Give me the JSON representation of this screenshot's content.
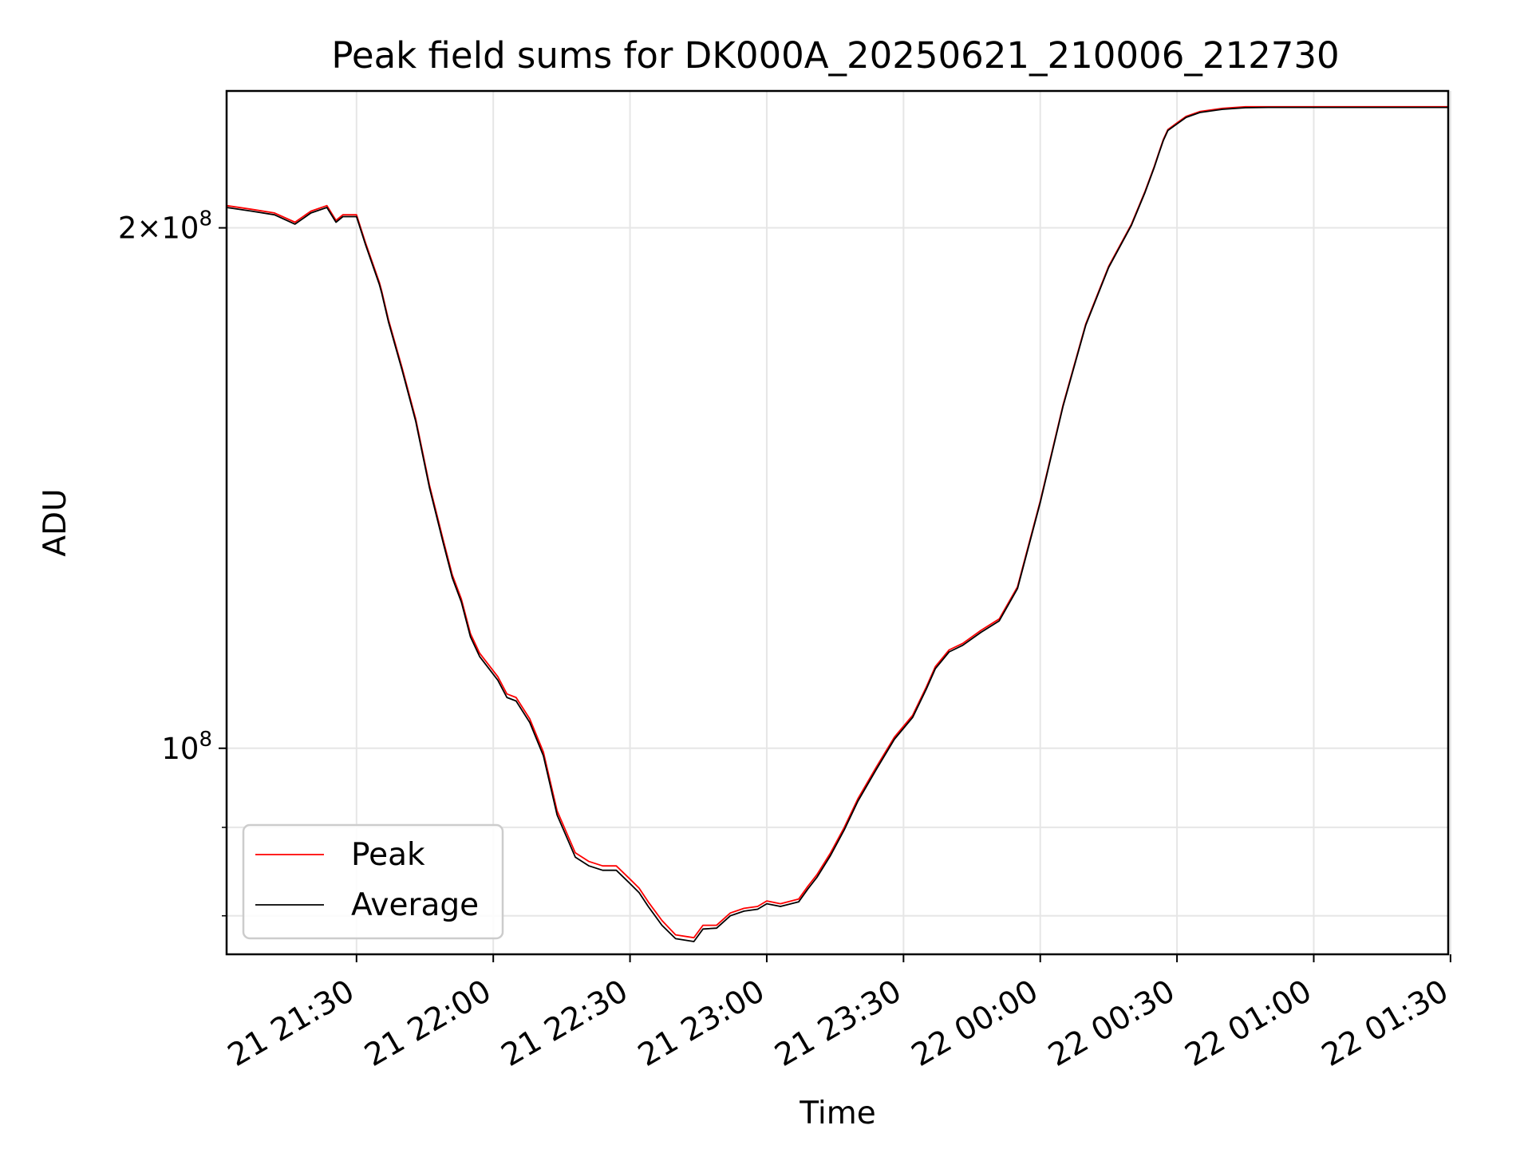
{
  "chart_data": {
    "type": "line",
    "title": "Peak field sums for DK000A_20250621_210006_212730",
    "xlabel": "Time",
    "ylabel": "ADU",
    "x_ticks": [
      "21 21:30",
      "21 22:00",
      "21 22:30",
      "21 23:00",
      "21 23:30",
      "22 00:00",
      "22 00:30",
      "22 01:00",
      "22 01:30"
    ],
    "y_major_ticks": [
      {
        "value": 200000000,
        "mantissa": "2",
        "exponent": "8",
        "label": "2×10^8"
      },
      {
        "value": 100000000,
        "mantissa": "",
        "exponent": "8",
        "label": "10^8"
      }
    ],
    "y_minor_ticks": [
      80000000,
      90000000
    ],
    "xlim": [
      "2025-06-21 21:01:30",
      "2025-06-22 01:29:30"
    ],
    "ylim": [
      76000000,
      240000000
    ],
    "yscale": "log",
    "grid": true,
    "legend_position": "lower-left",
    "series": [
      {
        "name": "Peak",
        "color": "#ff0000",
        "x": [
          "2025-06-21 21:01:30",
          "2025-06-21 21:07:00",
          "2025-06-21 21:12:00",
          "2025-06-21 21:16:30",
          "2025-06-21 21:20:00",
          "2025-06-21 21:23:30",
          "2025-06-21 21:25:30",
          "2025-06-21 21:27:00",
          "2025-06-21 21:30:00",
          "2025-06-21 21:32:00",
          "2025-06-21 21:35:00",
          "2025-06-21 21:35:30",
          "2025-06-21 21:37:00",
          "2025-06-21 21:40:00",
          "2025-06-21 21:43:00",
          "2025-06-21 21:46:00",
          "2025-06-21 21:49:00",
          "2025-06-21 21:51:00",
          "2025-06-21 21:53:00",
          "2025-06-21 21:55:00",
          "2025-06-21 21:57:00",
          "2025-06-21 22:01:00",
          "2025-06-21 22:03:00",
          "2025-06-21 22:05:00",
          "2025-06-21 22:08:00",
          "2025-06-21 22:11:00",
          "2025-06-21 22:14:00",
          "2025-06-21 22:18:00",
          "2025-06-21 22:21:00",
          "2025-06-21 22:24:00",
          "2025-06-21 22:27:00",
          "2025-06-21 22:30:00",
          "2025-06-21 22:32:00",
          "2025-06-21 22:34:00",
          "2025-06-21 22:37:00",
          "2025-06-21 22:40:00",
          "2025-06-21 22:44:00",
          "2025-06-21 22:46:00",
          "2025-06-21 22:49:00",
          "2025-06-21 22:52:00",
          "2025-06-21 22:55:00",
          "2025-06-21 22:58:00",
          "2025-06-21 23:00:00",
          "2025-06-21 23:03:00",
          "2025-06-21 23:07:00",
          "2025-06-21 23:09:00",
          "2025-06-21 23:11:00",
          "2025-06-21 23:14:00",
          "2025-06-21 23:17:00",
          "2025-06-21 23:20:00",
          "2025-06-21 23:24:00",
          "2025-06-21 23:28:00",
          "2025-06-21 23:32:00",
          "2025-06-21 23:35:00",
          "2025-06-21 23:37:00",
          "2025-06-21 23:40:00",
          "2025-06-21 23:43:00",
          "2025-06-21 23:47:00",
          "2025-06-21 23:51:00",
          "2025-06-21 23:55:00",
          "2025-06-22 00:00:00",
          "2025-06-22 00:05:00",
          "2025-06-22 00:10:00",
          "2025-06-22 00:15:00",
          "2025-06-22 00:20:00",
          "2025-06-22 00:23:00",
          "2025-06-22 00:25:00",
          "2025-06-22 00:26:00",
          "2025-06-22 00:27:00",
          "2025-06-22 00:28:00",
          "2025-06-22 00:30:00",
          "2025-06-22 00:32:00",
          "2025-06-22 00:35:00",
          "2025-06-22 00:40:00",
          "2025-06-22 00:45:00",
          "2025-06-22 00:50:00",
          "2025-06-22 00:54:00",
          "2025-06-22 00:57:00",
          "2025-06-22 01:00:00",
          "2025-06-22 01:03:00",
          "2025-06-22 01:06:00",
          "2025-06-22 01:12:00",
          "2025-06-22 01:20:00",
          "2025-06-22 01:29:30"
        ],
        "y": [
          206000000,
          205000000,
          204000000,
          201500000,
          204500000,
          206000000,
          202000000,
          203500000,
          203500000,
          196000000,
          186000000,
          184000000,
          177000000,
          166000000,
          155000000,
          142000000,
          132000000,
          126000000,
          122000000,
          116500000,
          113500000,
          110000000,
          107500000,
          107000000,
          104000000,
          99500000,
          92000000,
          87000000,
          86000000,
          85500000,
          85500000,
          84000000,
          83000000,
          81500000,
          79500000,
          78000000,
          77700000,
          79000000,
          79000000,
          80300000,
          80800000,
          81000000,
          81600000,
          81300000,
          81800000,
          83200000,
          84500000,
          87000000,
          90000000,
          93500000,
          97500000,
          101500000,
          104500000,
          108500000,
          111500000,
          114000000,
          115000000,
          117000000,
          118800000,
          124000000,
          139000000,
          158000000,
          176000000,
          190000000,
          201000000,
          210000000,
          217000000,
          221000000,
          225000000,
          228000000,
          230000000,
          232000000,
          233500000,
          234500000,
          235000000,
          235000000,
          235000000,
          235000000,
          235000000,
          235000000,
          235000000,
          235000000,
          235000000,
          235000000
        ]
      },
      {
        "name": "Average",
        "color": "#000000",
        "x": [
          "2025-06-21 21:01:30",
          "2025-06-21 21:07:00",
          "2025-06-21 21:12:00",
          "2025-06-21 21:16:30",
          "2025-06-21 21:20:00",
          "2025-06-21 21:23:30",
          "2025-06-21 21:25:30",
          "2025-06-21 21:27:00",
          "2025-06-21 21:30:00",
          "2025-06-21 21:32:00",
          "2025-06-21 21:35:00",
          "2025-06-21 21:35:30",
          "2025-06-21 21:37:00",
          "2025-06-21 21:40:00",
          "2025-06-21 21:43:00",
          "2025-06-21 21:46:00",
          "2025-06-21 21:49:00",
          "2025-06-21 21:51:00",
          "2025-06-21 21:53:00",
          "2025-06-21 21:55:00",
          "2025-06-21 21:57:00",
          "2025-06-21 22:01:00",
          "2025-06-21 22:03:00",
          "2025-06-21 22:05:00",
          "2025-06-21 22:08:00",
          "2025-06-21 22:11:00",
          "2025-06-21 22:14:00",
          "2025-06-21 22:18:00",
          "2025-06-21 22:21:00",
          "2025-06-21 22:24:00",
          "2025-06-21 22:27:00",
          "2025-06-21 22:30:00",
          "2025-06-21 22:32:00",
          "2025-06-21 22:34:00",
          "2025-06-21 22:37:00",
          "2025-06-21 22:40:00",
          "2025-06-21 22:44:00",
          "2025-06-21 22:46:00",
          "2025-06-21 22:49:00",
          "2025-06-21 22:52:00",
          "2025-06-21 22:55:00",
          "2025-06-21 22:58:00",
          "2025-06-21 23:00:00",
          "2025-06-21 23:03:00",
          "2025-06-21 23:07:00",
          "2025-06-21 23:09:00",
          "2025-06-21 23:11:00",
          "2025-06-21 23:14:00",
          "2025-06-21 23:17:00",
          "2025-06-21 23:20:00",
          "2025-06-21 23:24:00",
          "2025-06-21 23:28:00",
          "2025-06-21 23:32:00",
          "2025-06-21 23:35:00",
          "2025-06-21 23:37:00",
          "2025-06-21 23:40:00",
          "2025-06-21 23:43:00",
          "2025-06-21 23:47:00",
          "2025-06-21 23:51:00",
          "2025-06-21 23:55:00",
          "2025-06-22 00:00:00",
          "2025-06-22 00:05:00",
          "2025-06-22 00:10:00",
          "2025-06-22 00:15:00",
          "2025-06-22 00:20:00",
          "2025-06-22 00:23:00",
          "2025-06-22 00:25:00",
          "2025-06-22 00:26:00",
          "2025-06-22 00:27:00",
          "2025-06-22 00:28:00",
          "2025-06-22 00:30:00",
          "2025-06-22 00:32:00",
          "2025-06-22 00:35:00",
          "2025-06-22 00:40:00",
          "2025-06-22 00:45:00",
          "2025-06-22 00:50:00",
          "2025-06-22 00:54:00",
          "2025-06-22 00:57:00",
          "2025-06-22 01:00:00",
          "2025-06-22 01:03:00",
          "2025-06-22 01:06:00",
          "2025-06-22 01:12:00",
          "2025-06-22 01:20:00",
          "2025-06-22 01:29:30"
        ],
        "y": [
          205500000,
          204500000,
          203500000,
          201000000,
          204000000,
          205500000,
          201500000,
          203000000,
          203000000,
          195500000,
          185500000,
          183500000,
          176500000,
          165500000,
          154500000,
          141500000,
          131500000,
          125500000,
          121500000,
          116000000,
          113000000,
          109500000,
          107000000,
          106500000,
          103500000,
          99000000,
          91500000,
          86500000,
          85500000,
          85000000,
          85000000,
          83500000,
          82500000,
          81000000,
          79000000,
          77600000,
          77300000,
          78600000,
          78700000,
          80000000,
          80500000,
          80700000,
          81300000,
          81000000,
          81500000,
          82900000,
          84200000,
          86700000,
          89700000,
          93200000,
          97200000,
          101200000,
          104200000,
          108200000,
          111200000,
          113700000,
          114700000,
          116700000,
          118500000,
          123700000,
          138700000,
          157700000,
          175700000,
          189700000,
          200700000,
          209700000,
          216700000,
          220700000,
          224700000,
          227700000,
          229700000,
          231700000,
          233200000,
          234200000,
          234700000,
          234800000,
          234800000,
          234800000,
          234800000,
          234800000,
          234800000,
          234800000,
          234800000,
          234800000
        ]
      }
    ]
  }
}
